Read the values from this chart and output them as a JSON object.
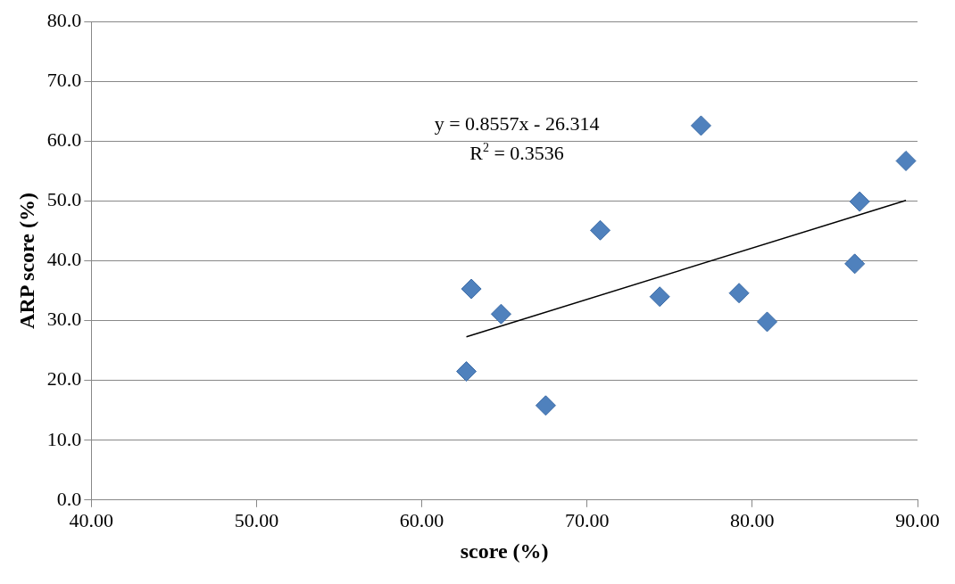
{
  "chart_data": {
    "type": "scatter",
    "xlabel": "score (%)",
    "ylabel": "ARP score (%)",
    "xlim": [
      40,
      90
    ],
    "xticks": [
      {
        "value": 40,
        "label": "40.00"
      },
      {
        "value": 50,
        "label": "50.00"
      },
      {
        "value": 60,
        "label": "60.00"
      },
      {
        "value": 70,
        "label": "70.00"
      },
      {
        "value": 80,
        "label": "80.00"
      },
      {
        "value": 90,
        "label": "90.00"
      }
    ],
    "ylim": [
      0,
      80
    ],
    "yticks": [
      {
        "value": 0,
        "label": "0.0"
      },
      {
        "value": 10,
        "label": "10.0"
      },
      {
        "value": 20,
        "label": "20.0"
      },
      {
        "value": 30,
        "label": "30.0"
      },
      {
        "value": 40,
        "label": "40.0"
      },
      {
        "value": 50,
        "label": "50.0"
      },
      {
        "value": 60,
        "label": "60.0"
      },
      {
        "value": 70,
        "label": "70.0"
      },
      {
        "value": 80,
        "label": "80.0"
      }
    ],
    "grid": "y",
    "marker": "diamond",
    "series": [
      {
        "type": "scatter",
        "color": "#4f81bd",
        "x": [
          63.0,
          64.8,
          62.7,
          67.5,
          70.8,
          74.4,
          76.9,
          79.2,
          80.9,
          86.2,
          86.5,
          89.3
        ],
        "values": [
          35.3,
          31.1,
          21.5,
          15.8,
          45.1,
          34.0,
          62.6,
          34.6,
          29.8,
          39.5,
          49.9,
          56.7
        ]
      },
      {
        "type": "line",
        "color": "#000000",
        "marker": "none",
        "x": [
          62.7,
          89.3
        ],
        "values": [
          27.3,
          50.1
        ]
      }
    ],
    "annotations": [
      "y = 0.8557x - 26.314",
      "R$^{2}$ = 0.3536"
    ]
  }
}
